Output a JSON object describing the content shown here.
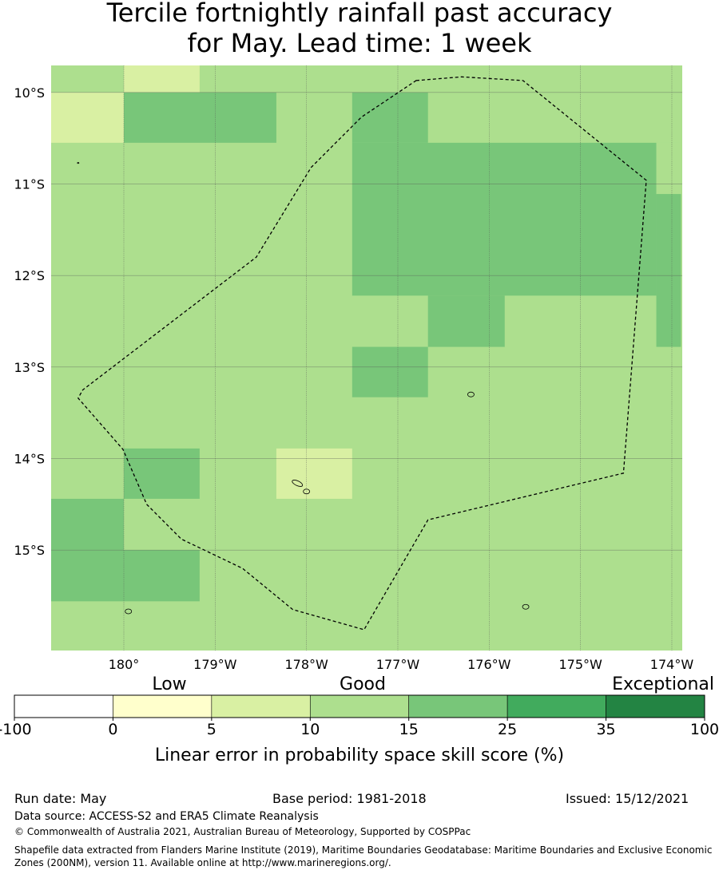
{
  "title_line1": "Tercile fortnightly rainfall past accuracy",
  "title_line2": "for May. Lead time: 1 week",
  "map": {
    "lon_range": [
      179.2,
      185.9
    ],
    "lat_range": [
      -16.3,
      -9.7
    ],
    "lon_ticks": [
      {
        "value": 180,
        "label": "180°"
      },
      {
        "value": 181,
        "label": "179°W"
      },
      {
        "value": 182,
        "label": "178°W"
      },
      {
        "value": 183,
        "label": "177°W"
      },
      {
        "value": 184,
        "label": "176°W"
      },
      {
        "value": 185,
        "label": "175°W"
      },
      {
        "value": 186,
        "label": "174°W"
      }
    ],
    "lat_ticks": [
      {
        "value": -10,
        "label": "10°S"
      },
      {
        "value": -11,
        "label": "11°S"
      },
      {
        "value": -12,
        "label": "12°S"
      },
      {
        "value": -13,
        "label": "13°S"
      },
      {
        "value": -14,
        "label": "14°S"
      },
      {
        "value": -15,
        "label": "15°S"
      }
    ],
    "background_color": "#addf8e",
    "cells": [
      {
        "lon": [
          180.0,
          180.83
        ],
        "lat": [
          -10.0,
          -9.7
        ],
        "color": "#d9f0a3"
      },
      {
        "lon": [
          179.2,
          180.0
        ],
        "lat": [
          -10.55,
          -10.0
        ],
        "color": "#d9f0a3"
      },
      {
        "lon": [
          180.0,
          181.67
        ],
        "lat": [
          -10.55,
          -10.0
        ],
        "color": "#78c679"
      },
      {
        "lon": [
          182.5,
          183.33
        ],
        "lat": [
          -10.55,
          -10.0
        ],
        "color": "#78c679"
      },
      {
        "lon": [
          182.5,
          185.83
        ],
        "lat": [
          -12.22,
          -10.55
        ],
        "color": "#78c679"
      },
      {
        "lon": [
          185.83,
          186.1
        ],
        "lat": [
          -11.11,
          -10.55
        ],
        "color": "#addf8e"
      },
      {
        "lon": [
          185.83,
          186.1
        ],
        "lat": [
          -12.78,
          -11.11
        ],
        "color": "#78c679"
      },
      {
        "lon": [
          183.33,
          184.17
        ],
        "lat": [
          -12.78,
          -12.22
        ],
        "color": "#78c679"
      },
      {
        "lon": [
          182.5,
          183.33
        ],
        "lat": [
          -13.33,
          -12.78
        ],
        "color": "#78c679"
      },
      {
        "lon": [
          180.0,
          180.83
        ],
        "lat": [
          -14.44,
          -13.89
        ],
        "color": "#78c679"
      },
      {
        "lon": [
          181.67,
          182.5
        ],
        "lat": [
          -14.44,
          -13.89
        ],
        "color": "#d9f0a3"
      },
      {
        "lon": [
          179.2,
          180.0
        ],
        "lat": [
          -15.0,
          -14.44
        ],
        "color": "#78c679"
      },
      {
        "lon": [
          179.2,
          180.83
        ],
        "lat": [
          -15.56,
          -15.0
        ],
        "color": "#78c679"
      }
    ],
    "boundary": [
      [
        183.2,
        -9.87
      ],
      [
        183.7,
        -9.83
      ],
      [
        184.37,
        -9.87
      ],
      [
        185.72,
        -10.96
      ],
      [
        185.47,
        -14.16
      ],
      [
        183.33,
        -14.67
      ],
      [
        182.63,
        -15.87
      ],
      [
        181.85,
        -15.65
      ],
      [
        181.3,
        -15.2
      ],
      [
        180.63,
        -14.88
      ],
      [
        180.25,
        -14.5
      ],
      [
        179.99,
        -13.9
      ],
      [
        179.5,
        -13.34
      ],
      [
        179.55,
        -13.25
      ],
      [
        181.45,
        -11.8
      ],
      [
        182.05,
        -10.82
      ],
      [
        182.6,
        -10.27
      ]
    ],
    "islands": [
      {
        "lon": 183.8,
        "lat": -13.3,
        "size": "small"
      },
      {
        "lon": 181.9,
        "lat": -14.27,
        "size": "medium"
      },
      {
        "lon": 182.0,
        "lat": -14.36,
        "size": "small"
      },
      {
        "lon": 184.4,
        "lat": -15.62,
        "size": "small"
      },
      {
        "lon": 180.05,
        "lat": -15.67,
        "size": "small"
      },
      {
        "lon": 179.5,
        "lat": -10.77,
        "size": "dot"
      }
    ]
  },
  "colorbar": {
    "category_labels": [
      "Low",
      "Good",
      "Exceptional"
    ],
    "ticks": [
      "-100",
      "0",
      "5",
      "10",
      "15",
      "25",
      "35",
      "100"
    ],
    "colors": [
      "#ffffff",
      "#ffffcc",
      "#d9f0a3",
      "#addf8e",
      "#78c679",
      "#41ab5d",
      "#238443"
    ],
    "xlabel": "Linear error in probability space skill score (%)"
  },
  "footer": {
    "run_date": "Run date: May",
    "base_period": "Base period: 1981-2018",
    "issued": "Issued: 15/12/2021",
    "data_source": "Data source: ACCESS-S2 and ERA5 Climate Reanalysis",
    "copyright": "© Commonwealth of Australia 2021, Australian Bureau of Meteorology, Supported by COSPPac",
    "shapefile": "Shapefile data extracted from Flanders Marine Institute (2019), Maritime Boundaries Geodatabase: Maritime Boundaries and Exclusive Economic Zones (200NM), version 11. Available online at http://www.marineregions.org/."
  }
}
